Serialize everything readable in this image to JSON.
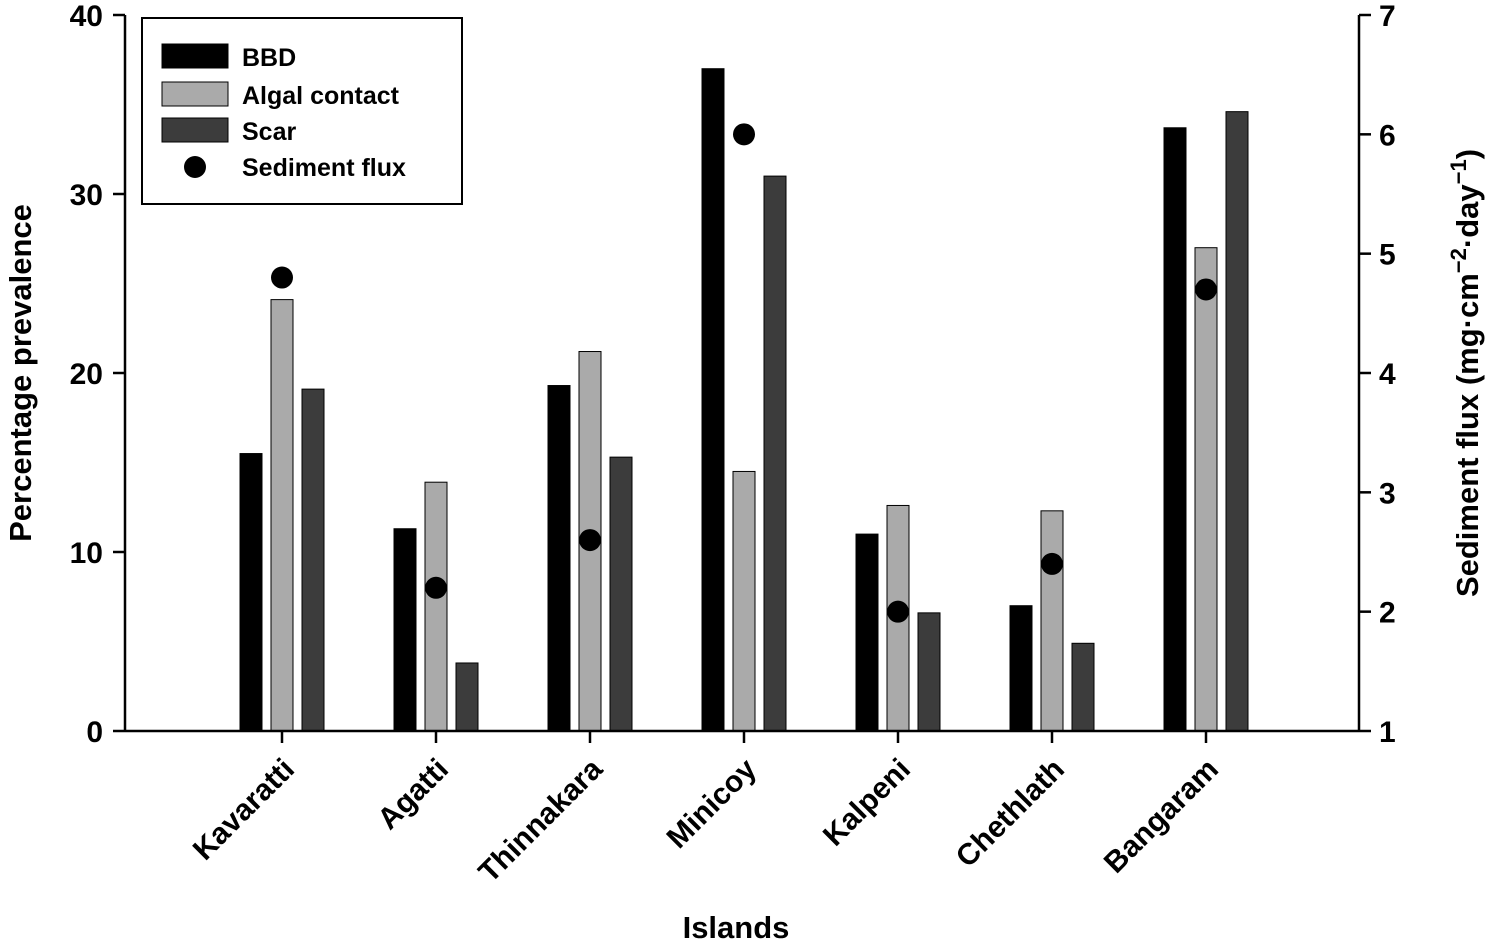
{
  "chart_data": {
    "type": "bar",
    "categories": [
      "Kavaratti",
      "Agatti",
      "Thinnakara",
      "Minicoy",
      "Kalpeni",
      "Chethlath",
      "Bangaram"
    ],
    "series": [
      {
        "name": "BBD",
        "axis": "left",
        "color": "#000000",
        "values": [
          15.5,
          11.3,
          19.3,
          37.0,
          11.0,
          7.0,
          33.7
        ]
      },
      {
        "name": "Algal contact",
        "axis": "left",
        "color": "#aaaaaa",
        "values": [
          24.1,
          13.9,
          21.2,
          14.5,
          12.6,
          12.3,
          27.0
        ]
      },
      {
        "name": "Scar",
        "axis": "left",
        "color": "#3c3c3c",
        "values": [
          19.1,
          3.8,
          15.3,
          31.0,
          6.6,
          4.9,
          34.6
        ]
      },
      {
        "name": "Sediment flux",
        "axis": "right",
        "type": "scatter",
        "color": "#000000",
        "values": [
          4.8,
          2.2,
          2.6,
          6.0,
          2.0,
          2.4,
          4.7
        ]
      }
    ],
    "xlabel": "Islands",
    "ylabel": "Percentage prevalence",
    "y2label_main": "Sediment flux (mg·cm",
    "y2label_exp1": "−2",
    "y2label_mid": "·day",
    "y2label_exp2": "−1",
    "y2label_end": ")",
    "ylim": [
      0,
      40
    ],
    "y2lim": [
      1,
      7
    ],
    "yticks": [
      "0",
      "10",
      "20",
      "30",
      "40"
    ],
    "y2ticks": [
      "1",
      "2",
      "3",
      "4",
      "5",
      "6",
      "7"
    ],
    "legend_position": "top-left",
    "grid": false
  }
}
